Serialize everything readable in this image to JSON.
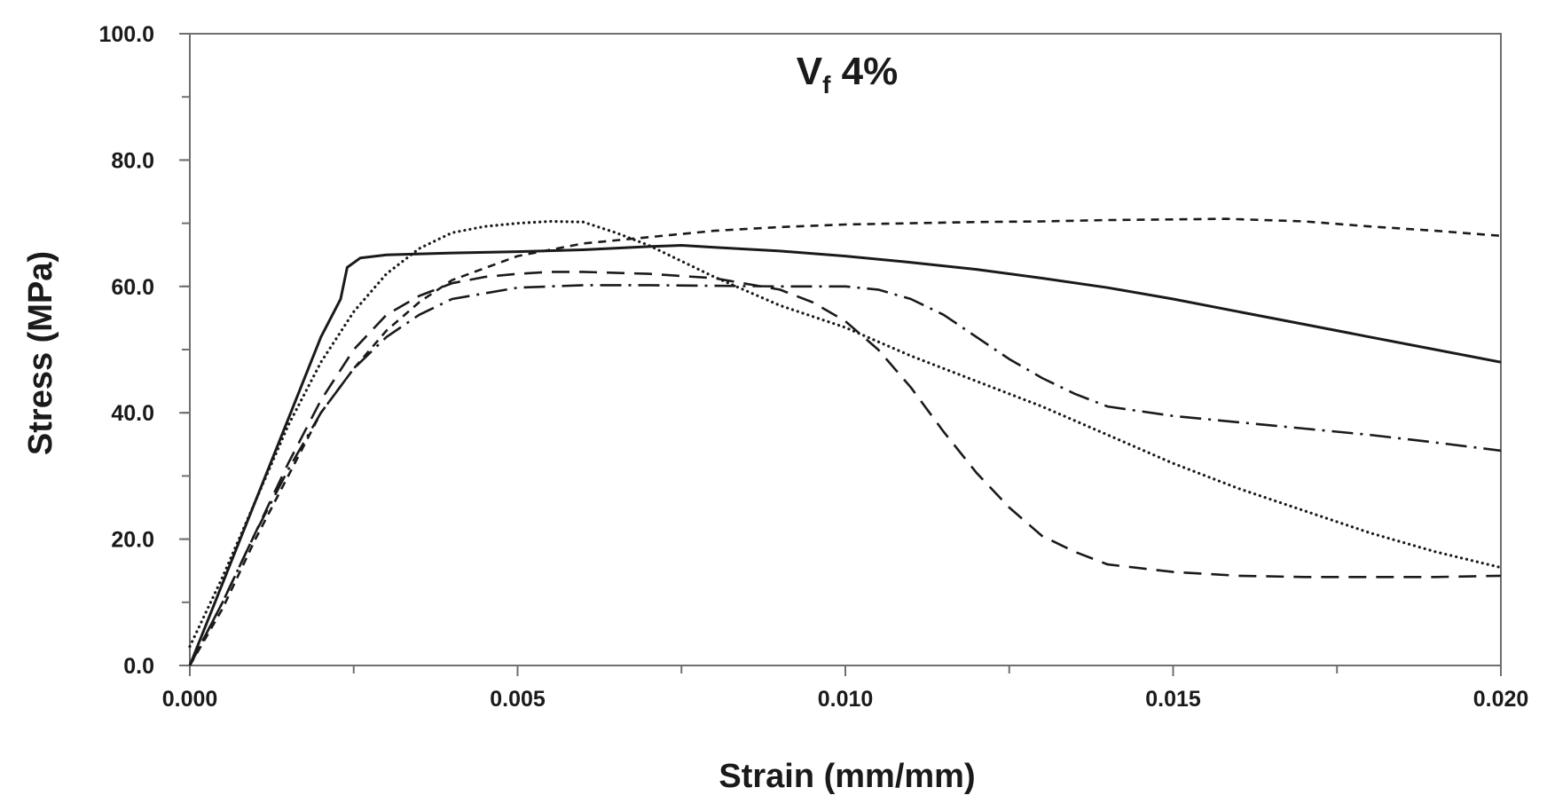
{
  "chart_data": {
    "type": "line",
    "title": {
      "main": "V",
      "subscript": "f",
      "rest": " 4%"
    },
    "xlabel": "Strain (mm/mm)",
    "ylabel": "Stress (MPa)",
    "xlim": [
      0,
      0.02
    ],
    "ylim": [
      0,
      100
    ],
    "xticks": [
      0,
      0.005,
      0.01,
      0.015,
      0.02
    ],
    "xtick_labels": [
      "0.000",
      "0.005",
      "0.010",
      "0.015",
      "0.020"
    ],
    "yticks": [
      0,
      20,
      40,
      60,
      80,
      100
    ],
    "ytick_labels": [
      "0.0",
      "20.0",
      "40.0",
      "60.0",
      "80.0",
      "100.0"
    ],
    "x_minor_step": 0.0025,
    "y_minor_step": 10,
    "grid": false,
    "legend": "none",
    "series": [
      {
        "name": "solid",
        "style": "solid",
        "x": [
          0,
          0.0005,
          0.001,
          0.0015,
          0.002,
          0.0023,
          0.0024,
          0.0026,
          0.003,
          0.004,
          0.005,
          0.006,
          0.007,
          0.0075,
          0.008,
          0.009,
          0.01,
          0.011,
          0.012,
          0.013,
          0.014,
          0.015,
          0.016,
          0.017,
          0.018,
          0.019,
          0.02
        ],
        "y": [
          0,
          13,
          26,
          39,
          52,
          58,
          63,
          64.5,
          65,
          65.3,
          65.5,
          65.8,
          66.3,
          66.5,
          66.2,
          65.6,
          64.8,
          63.8,
          62.7,
          61.3,
          59.8,
          58,
          56,
          54,
          52,
          50,
          48
        ]
      },
      {
        "name": "short-dash",
        "style": "short-dash",
        "x": [
          0,
          0.0005,
          0.001,
          0.0015,
          0.002,
          0.0025,
          0.003,
          0.0035,
          0.004,
          0.005,
          0.006,
          0.007,
          0.008,
          0.009,
          0.01,
          0.011,
          0.012,
          0.013,
          0.014,
          0.015,
          0.0158,
          0.017,
          0.018,
          0.019,
          0.02
        ],
        "y": [
          0,
          9,
          20,
          30,
          40,
          47,
          53,
          57.5,
          61,
          64.8,
          66.8,
          67.8,
          68.8,
          69.4,
          69.8,
          70,
          70.2,
          70.3,
          70.5,
          70.6,
          70.7,
          70.3,
          69.5,
          68.8,
          68
        ]
      },
      {
        "name": "dotted",
        "style": "dotted",
        "x": [
          0,
          0.0005,
          0.001,
          0.0015,
          0.002,
          0.0025,
          0.003,
          0.0035,
          0.004,
          0.0045,
          0.005,
          0.0055,
          0.006,
          0.0065,
          0.007,
          0.008,
          0.009,
          0.01,
          0.011,
          0.012,
          0.013,
          0.014,
          0.015,
          0.016,
          0.017,
          0.018,
          0.019,
          0.02
        ],
        "y": [
          3,
          14,
          26,
          38,
          48,
          56,
          62,
          66,
          68.5,
          69.5,
          70,
          70.3,
          70.2,
          68.5,
          66.5,
          61.5,
          57,
          53.5,
          49,
          45,
          41,
          36.5,
          32,
          28,
          24.5,
          21,
          18,
          15.5
        ]
      },
      {
        "name": "long-dash",
        "style": "long-dash",
        "x": [
          0,
          0.0005,
          0.001,
          0.0015,
          0.002,
          0.0025,
          0.003,
          0.0035,
          0.004,
          0.0045,
          0.005,
          0.0055,
          0.006,
          0.007,
          0.008,
          0.009,
          0.0095,
          0.01,
          0.0105,
          0.011,
          0.0115,
          0.012,
          0.0125,
          0.013,
          0.0135,
          0.014,
          0.015,
          0.016,
          0.017,
          0.018,
          0.019,
          0.02
        ],
        "y": [
          0,
          10,
          21,
          32,
          42,
          50,
          55.5,
          58.5,
          60.5,
          61.5,
          62,
          62.3,
          62.3,
          62,
          61.3,
          59.5,
          57.5,
          54.5,
          50,
          44,
          37,
          30.5,
          25,
          20.5,
          18,
          16,
          14.8,
          14.2,
          14,
          14,
          14,
          14.2
        ]
      },
      {
        "name": "dash-dot",
        "style": "dash-dot",
        "x": [
          0,
          0.0005,
          0.001,
          0.0015,
          0.002,
          0.0025,
          0.003,
          0.0035,
          0.004,
          0.005,
          0.006,
          0.007,
          0.008,
          0.009,
          0.0095,
          0.01,
          0.0105,
          0.011,
          0.0115,
          0.012,
          0.0125,
          0.013,
          0.0135,
          0.014,
          0.015,
          0.016,
          0.017,
          0.018,
          0.019,
          0.02
        ],
        "y": [
          0,
          10,
          21,
          31,
          40,
          47,
          52,
          55.5,
          58,
          59.8,
          60.2,
          60.2,
          60.1,
          60,
          60,
          60,
          59.5,
          58,
          55.5,
          52,
          48.5,
          45.5,
          43,
          41,
          39.5,
          38.5,
          37.5,
          36.5,
          35.3,
          34
        ]
      }
    ]
  }
}
